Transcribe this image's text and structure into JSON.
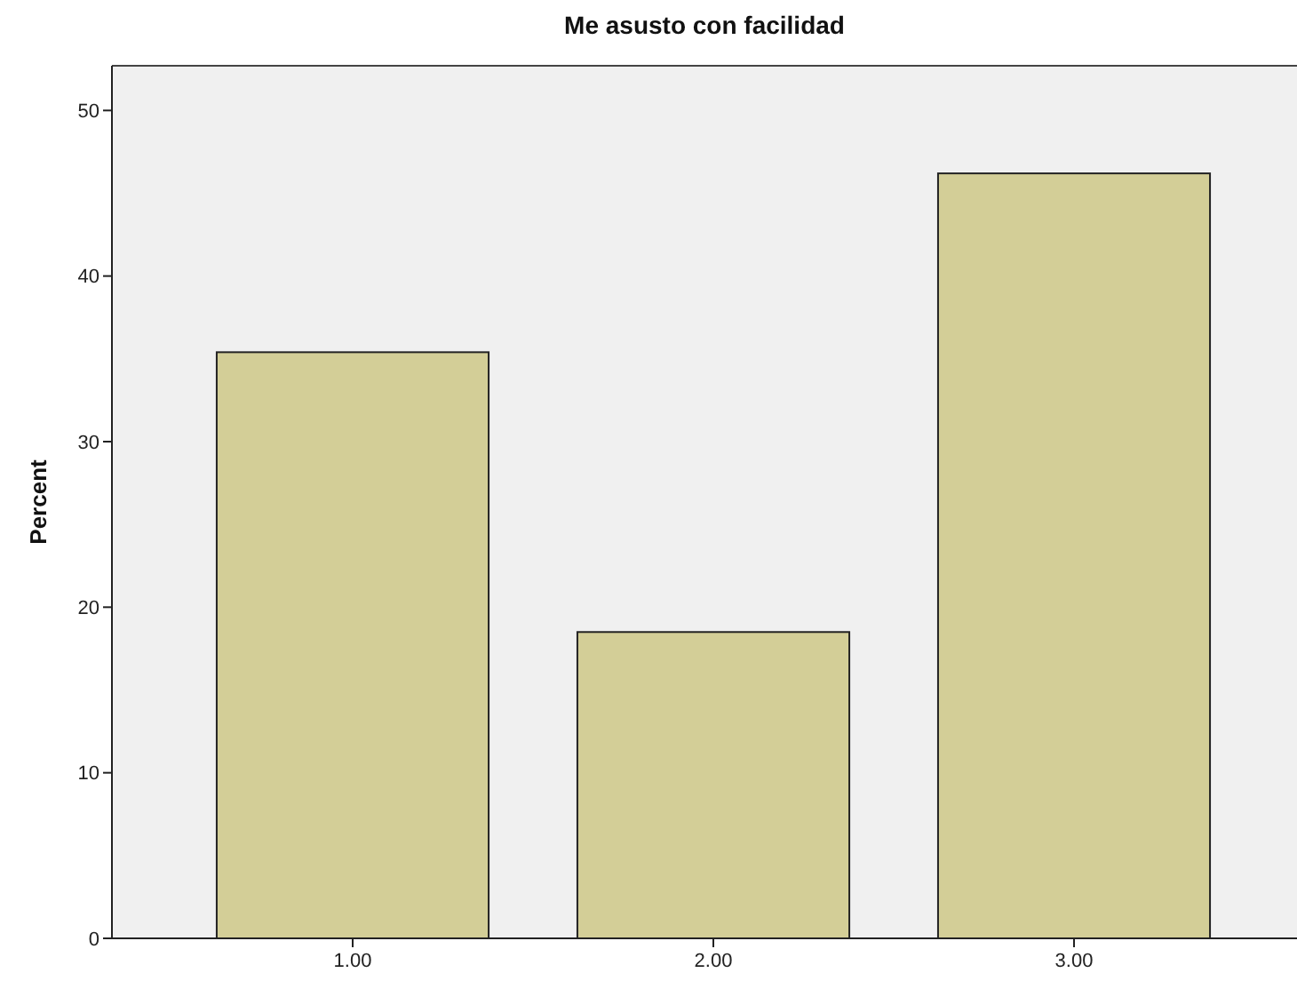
{
  "chart_data": {
    "type": "bar",
    "title": "Me asusto con facilidad",
    "ylabel": "Percent",
    "categories": [
      "1.00",
      "2.00",
      "3.00"
    ],
    "values": [
      35.4,
      18.5,
      46.2
    ],
    "color": "#d3ce97",
    "ylim": [
      0,
      52.7
    ],
    "yticks": [
      0,
      10,
      20,
      30,
      40,
      50
    ],
    "grid": false
  }
}
